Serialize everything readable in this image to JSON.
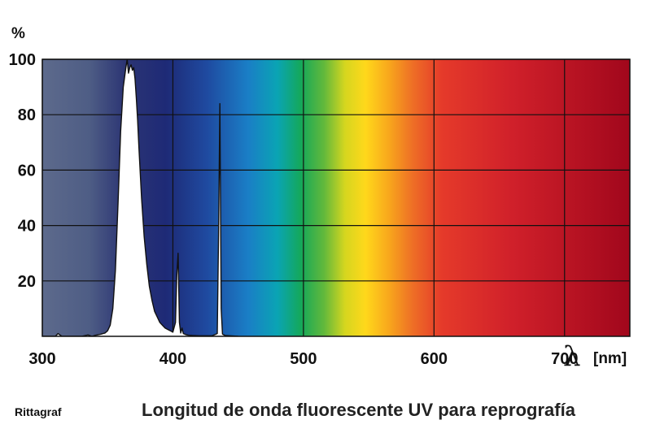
{
  "chart_data": {
    "type": "line",
    "title": "Longitud de onda fluorescente UV para reprografía",
    "credit": "Rittagraf",
    "y_unit": "%",
    "x_symbol": "λ",
    "x_unit": "[nm]",
    "xlim": [
      300,
      750
    ],
    "ylim": [
      0,
      100
    ],
    "x_ticks": [
      "300",
      "400",
      "500",
      "600",
      "700"
    ],
    "y_ticks": [
      "100",
      "80",
      "60",
      "40",
      "20"
    ],
    "grid": true,
    "background": "visible spectrum color gradient",
    "series": [
      {
        "x": [
          300,
          310,
          312,
          315,
          318,
          330,
          335,
          338,
          340,
          342,
          345,
          348,
          350,
          352,
          354,
          356,
          358,
          360,
          362,
          364,
          365,
          366,
          367,
          368,
          369,
          370,
          371,
          372,
          373,
          374,
          376,
          378,
          380,
          382,
          384,
          386,
          388,
          390,
          392,
          394,
          396,
          398,
          400,
          402,
          403,
          404,
          405,
          406,
          407,
          408,
          409,
          410,
          412,
          415,
          420,
          425,
          430,
          434,
          435,
          436,
          437,
          438,
          440,
          450
        ],
        "y": [
          0,
          0,
          1,
          0,
          0,
          0,
          0.5,
          0,
          0.3,
          0.5,
          0.8,
          1.2,
          2,
          4,
          10,
          24,
          48,
          74,
          90,
          97,
          100,
          95,
          97,
          98,
          96,
          97,
          93,
          86,
          78,
          68,
          50,
          36,
          26,
          18,
          13,
          9,
          7,
          5,
          4,
          3,
          2.5,
          2,
          1.5,
          5,
          22,
          30,
          5,
          1.2,
          3,
          1,
          0.8,
          0.6,
          0.4,
          0.3,
          0.2,
          0.2,
          0.2,
          1,
          37,
          84,
          10,
          0.8,
          0.3,
          0
        ]
      }
    ],
    "colors": {
      "uv_band": "#4f5f85",
      "grid": "#111111",
      "emission_fill": "#ffffff",
      "emission_stroke": "#111111"
    }
  }
}
